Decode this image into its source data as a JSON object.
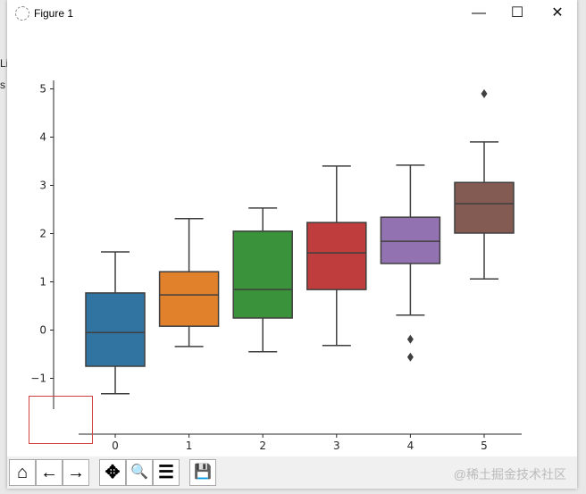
{
  "window": {
    "title": "Figure 1",
    "minimize": "—",
    "maximize": "☐",
    "close": "✕"
  },
  "background_text": [
    "Li",
    "s"
  ],
  "toolbar": {
    "buttons": [
      {
        "name": "home-button",
        "icon": "home-icon",
        "glyph": "⌂"
      },
      {
        "name": "back-button",
        "icon": "arrow-left-icon",
        "glyph": "←"
      },
      {
        "name": "forward-button",
        "icon": "arrow-right-icon",
        "glyph": "→"
      },
      {
        "name": "pan-button",
        "icon": "move-icon",
        "glyph": "✥"
      },
      {
        "name": "zoom-button",
        "icon": "magnifier-icon",
        "glyph": "🔍"
      },
      {
        "name": "configure-button",
        "icon": "sliders-icon",
        "glyph": "☰"
      },
      {
        "name": "save-button",
        "icon": "floppy-icon",
        "glyph": "💾"
      }
    ],
    "watermark": "@稀土掘金技术社区"
  },
  "chart_data": {
    "type": "box",
    "categories": [
      "0",
      "1",
      "2",
      "3",
      "4",
      "5"
    ],
    "yticks": [
      "−1",
      "0",
      "1",
      "2",
      "3",
      "4",
      "5"
    ],
    "ylim": [
      -1.6,
      5.3
    ],
    "colors": [
      "#3274a1",
      "#e1812c",
      "#3a923a",
      "#c03d3e",
      "#9372b2",
      "#845b53"
    ],
    "boxes": [
      {
        "whislo": -1.32,
        "q1": -0.75,
        "med": -0.05,
        "q3": 0.77,
        "whishi": 1.62,
        "fliers": []
      },
      {
        "whislo": -0.34,
        "q1": 0.08,
        "med": 0.73,
        "q3": 1.21,
        "whishi": 2.31,
        "fliers": []
      },
      {
        "whislo": -0.45,
        "q1": 0.25,
        "med": 0.84,
        "q3": 2.05,
        "whishi": 2.53,
        "fliers": []
      },
      {
        "whislo": -0.32,
        "q1": 0.84,
        "med": 1.6,
        "q3": 2.23,
        "whishi": 3.4,
        "fliers": []
      },
      {
        "whislo": 0.31,
        "q1": 1.38,
        "med": 1.84,
        "q3": 2.34,
        "whishi": 3.42,
        "fliers": [
          -0.19,
          -0.56
        ]
      },
      {
        "whislo": 1.06,
        "q1": 2.01,
        "med": 2.62,
        "q3": 3.06,
        "whishi": 3.9,
        "fliers": [
          4.9
        ]
      }
    ],
    "grid": false
  }
}
